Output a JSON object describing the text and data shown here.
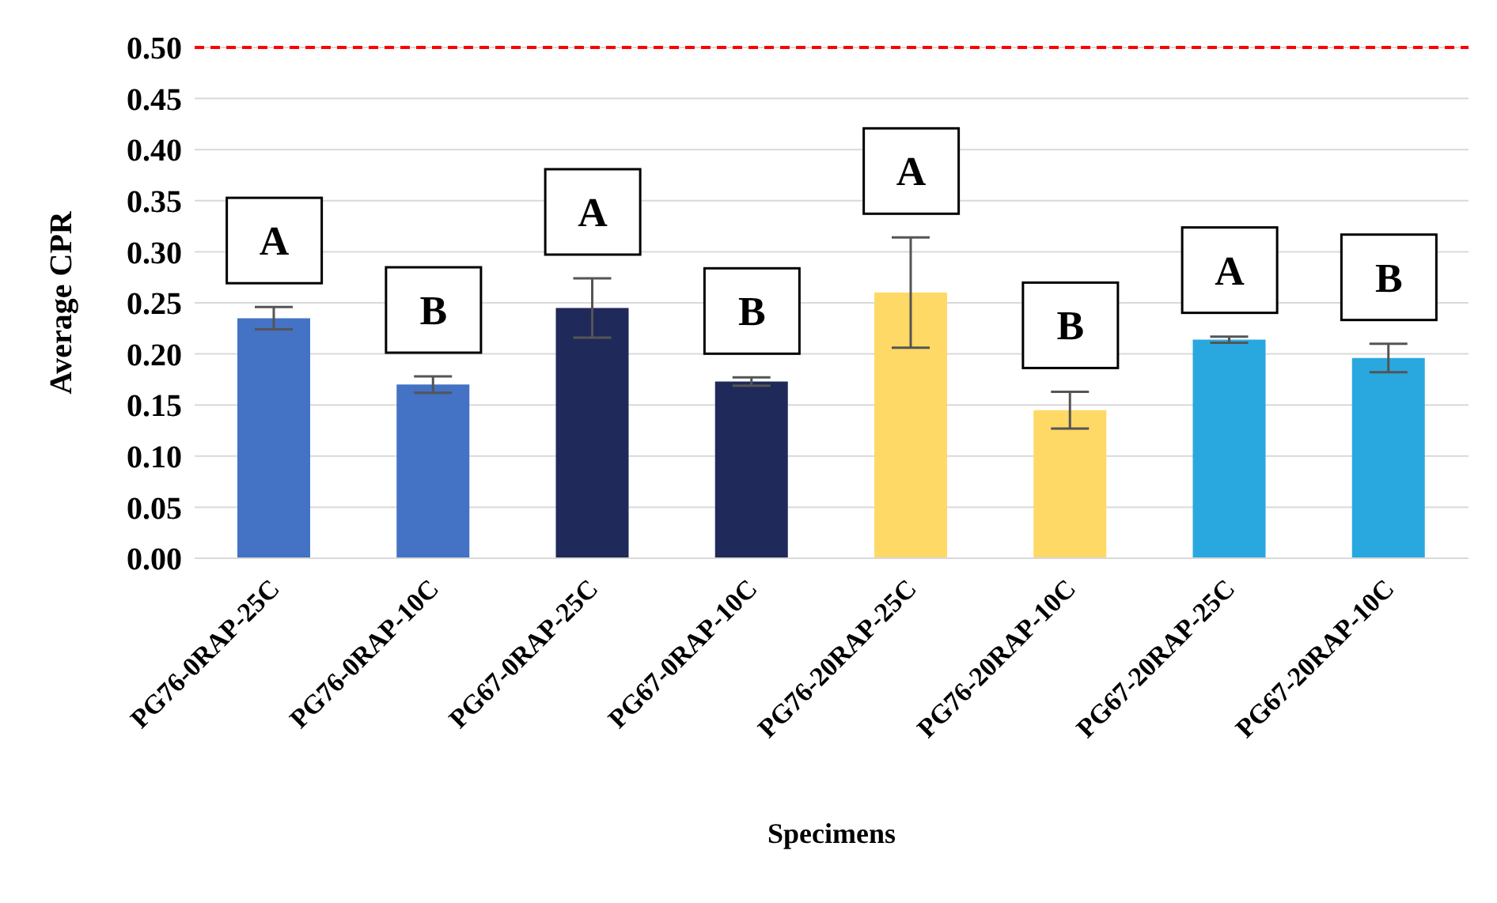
{
  "chart_data": {
    "type": "bar",
    "xlabel": "Specimens",
    "ylabel": "Average CPR",
    "categories": [
      "PG76-0RAP-25C",
      "PG76-0RAP-10C",
      "PG67-0RAP-25C",
      "PG67-0RAP-10C",
      "PG76-20RAP-25C",
      "PG76-20RAP-10C",
      "PG67-20RAP-25C",
      "PG67-20RAP-10C"
    ],
    "values": [
      0.235,
      0.17,
      0.245,
      0.173,
      0.26,
      0.145,
      0.214,
      0.196
    ],
    "errors": [
      0.011,
      0.008,
      0.029,
      0.004,
      0.054,
      0.018,
      0.003,
      0.014
    ],
    "colors": [
      "#4472c4",
      "#4472c4",
      "#1f2a5a",
      "#1f2a5a",
      "#ffd966",
      "#ffd966",
      "#29a8e0",
      "#29a8e0"
    ],
    "ylim": [
      0,
      0.5
    ],
    "yticks": [
      {
        "value": 0,
        "label": "0.00"
      },
      {
        "value": 0.05,
        "label": "0.05"
      },
      {
        "value": 0.1,
        "label": "0.10"
      },
      {
        "value": 0.15,
        "label": "0.15"
      },
      {
        "value": 0.2,
        "label": "0.20"
      },
      {
        "value": 0.25,
        "label": "0.25"
      },
      {
        "value": 0.3,
        "label": "0.30"
      },
      {
        "value": 0.35,
        "label": "0.35"
      },
      {
        "value": 0.4,
        "label": "0.40"
      },
      {
        "value": 0.45,
        "label": "0.45"
      },
      {
        "value": 0.5,
        "label": "0.50"
      }
    ],
    "grid": "y",
    "legend": false,
    "ref_lines": [
      {
        "axis": "y",
        "value": 0.5,
        "color": "#ff0000",
        "line_style": "dashed"
      }
    ],
    "annotations": [
      "A",
      "B",
      "A",
      "B",
      "A",
      "B",
      "A",
      "B"
    ]
  }
}
